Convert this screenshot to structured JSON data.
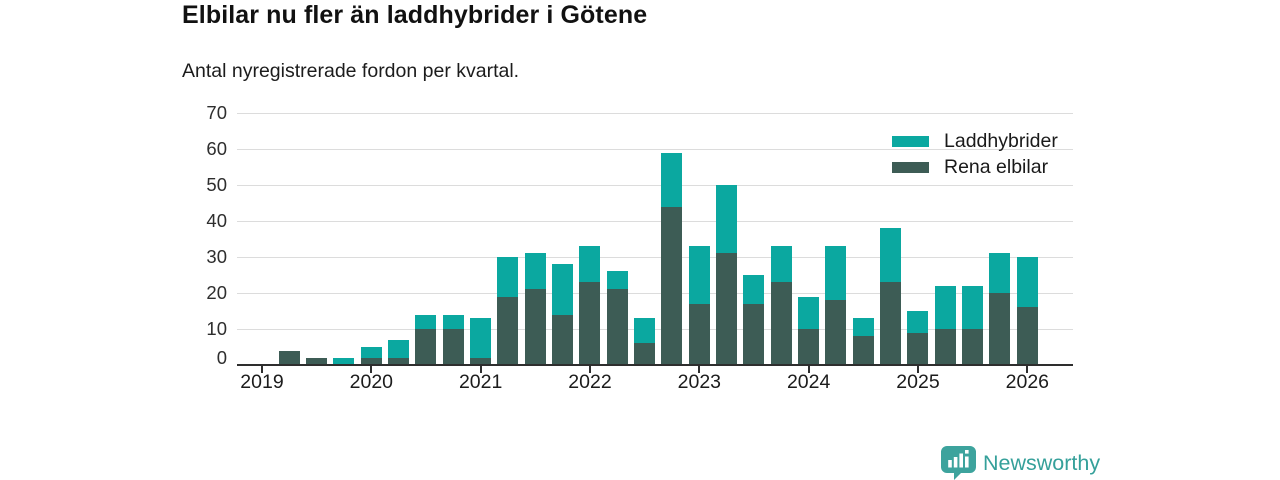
{
  "title": "Elbilar nu fler än laddhybrider i Götene",
  "subtitle": "Antal nyregistrerade fordon per kvartal.",
  "legend": [
    {
      "label": "Laddhybrider",
      "color": "#0ba8a0"
    },
    {
      "label": "Rena elbilar",
      "color": "#3d5c55"
    }
  ],
  "branding": {
    "name": "Newsworthy",
    "color": "#35a09a",
    "icon": "newsworthy-bubble-barchart-icon"
  },
  "colors": {
    "laddhybrider": "#0ba8a0",
    "rena_elbilar": "#3d5c55",
    "grid": "#dcdcdc",
    "axis": "#2e2e2e",
    "text": "#1a1a1a"
  },
  "chart_data": {
    "type": "bar",
    "stacked": true,
    "title": "Elbilar nu fler än laddhybrider i Götene",
    "subtitle": "Antal nyregistrerade fordon per kvartal.",
    "xlabel": "",
    "ylabel": "",
    "ylim": [
      0,
      70
    ],
    "yticks": [
      0,
      10,
      20,
      30,
      40,
      50,
      60,
      70
    ],
    "grid": true,
    "legend_position": "top-right-inside",
    "x": [
      "2019 Q1",
      "2019 Q2",
      "2019 Q3",
      "2019 Q4",
      "2020 Q1",
      "2020 Q2",
      "2020 Q3",
      "2020 Q4",
      "2021 Q1",
      "2021 Q2",
      "2021 Q3",
      "2021 Q4",
      "2022 Q1",
      "2022 Q2",
      "2022 Q3",
      "2022 Q4",
      "2023 Q1",
      "2023 Q2",
      "2023 Q3",
      "2023 Q4",
      "2024 Q1",
      "2024 Q2",
      "2024 Q3",
      "2024 Q4",
      "2025 Q1",
      "2025 Q2",
      "2025 Q3",
      "2025 Q4",
      "2026 Q1"
    ],
    "x_year_ticks": [
      "2019",
      "2020",
      "2021",
      "2022",
      "2023",
      "2024",
      "2025",
      "2026"
    ],
    "series": [
      {
        "name": "Rena elbilar",
        "color": "#3d5c55",
        "values": [
          0,
          4,
          2,
          0,
          2,
          2,
          10,
          10,
          2,
          19,
          21,
          14,
          23,
          21,
          6,
          44,
          17,
          31,
          17,
          23,
          10,
          18,
          8,
          23,
          9,
          10,
          10,
          20,
          16
        ]
      },
      {
        "name": "Laddhybrider",
        "color": "#0ba8a0",
        "values": [
          0,
          0,
          0,
          2,
          3,
          5,
          4,
          4,
          11,
          11,
          10,
          14,
          10,
          5,
          7,
          15,
          16,
          19,
          8,
          10,
          9,
          15,
          5,
          15,
          6,
          12,
          12,
          11,
          14
        ]
      }
    ],
    "totals": [
      0,
      4,
      2,
      2,
      5,
      7,
      14,
      14,
      13,
      30,
      31,
      28,
      33,
      26,
      13,
      59,
      33,
      50,
      25,
      33,
      19,
      33,
      13,
      38,
      15,
      22,
      22,
      31,
      30
    ]
  }
}
